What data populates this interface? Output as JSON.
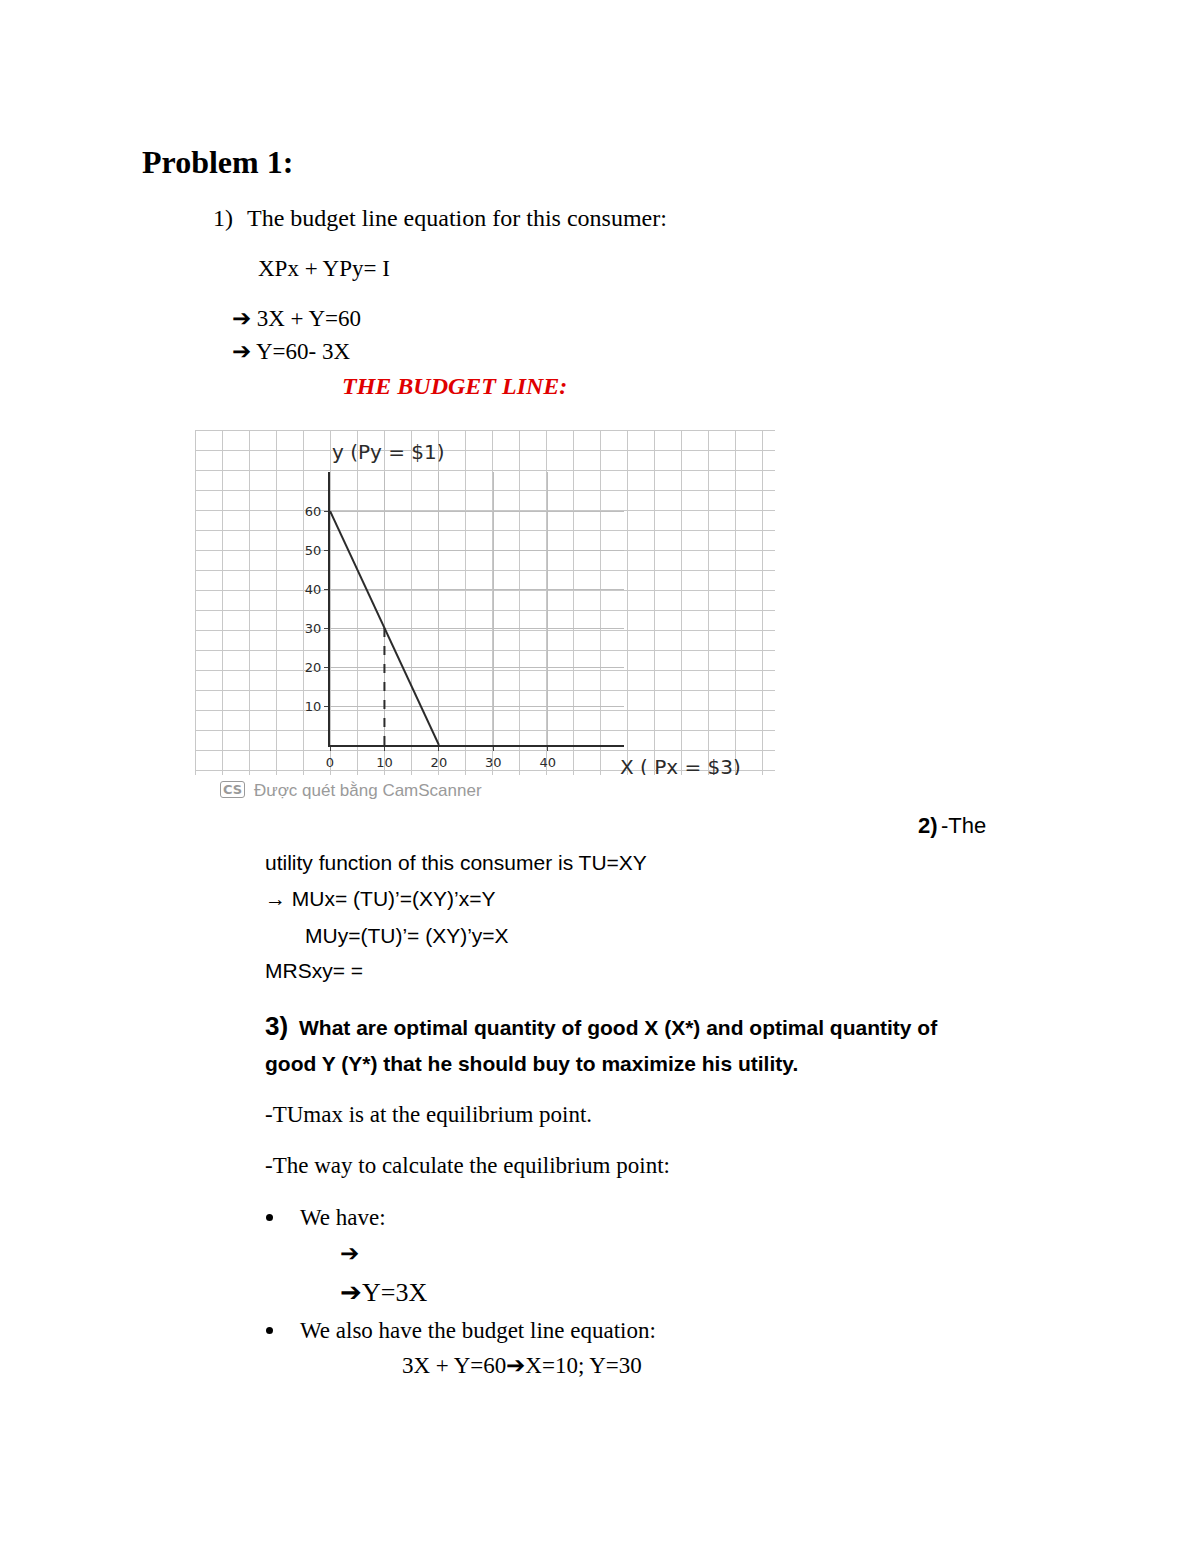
{
  "document": {
    "heading": "Problem 1:",
    "part1": {
      "number": "1)",
      "text": "The budget line equation for this consumer:",
      "lines": [
        "XPx + YPy= I",
        "➔ 3X + Y=60",
        "➔ Y=60- 3X"
      ],
      "caption": "THE BUDGET LINE:"
    },
    "watermark": {
      "icon": "CS",
      "text": "Được quét bằng CamScanner"
    },
    "part2": {
      "number": "2)",
      "lead": "-The",
      "lines": [
        "utility function of this consumer is TU=XY",
        "→ MUx= (TU)’=(XY)’x=Y",
        "MUy=(TU)’= (XY)’y=X",
        "MRSxy= ="
      ]
    },
    "part3": {
      "number": "3)",
      "question": [
        "What are optimal quantity of good X (X*) and optimal quantity of",
        "good Y (Y*) that he should buy to maximize his utility."
      ],
      "lines": [
        "-TUmax is at the equilibrium point.",
        "-The way to calculate the equilibrium point:"
      ],
      "bullets": [
        {
          "text": "We have:",
          "steps": [
            "➔",
            "➔Y=3X"
          ]
        },
        {
          "text": "We also have the budget line equation:",
          "steps": [
            "3X + Y=60➔X=10; Y=30"
          ]
        }
      ]
    }
  },
  "chart_data": {
    "type": "line",
    "x_label": "X ( Px = $3)",
    "y_label": "y (Py = $1)",
    "xlim": [
      0,
      54
    ],
    "ylim": [
      0,
      70
    ],
    "xticks": [
      0,
      10,
      20,
      30,
      40
    ],
    "yticks": [
      10,
      20,
      30,
      40,
      50,
      60
    ],
    "grid": true,
    "series": [
      {
        "x": [
          0,
          20
        ],
        "values": [
          60,
          0
        ],
        "color": "#2b2b2b",
        "line_style": "solid"
      },
      {
        "x": [
          10,
          10
        ],
        "values": [
          0,
          30
        ],
        "color": "#2b2b2b",
        "line_style": "dashed"
      }
    ]
  }
}
